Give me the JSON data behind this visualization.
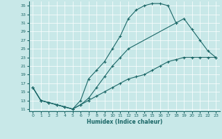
{
  "xlabel": "Humidex (Indice chaleur)",
  "bg_color": "#c8e8e8",
  "line_color": "#1a6666",
  "grid_color": "#ffffff",
  "xlim": [
    -0.5,
    23.5
  ],
  "ylim": [
    10.5,
    36
  ],
  "xticks": [
    0,
    1,
    2,
    3,
    4,
    5,
    6,
    7,
    8,
    9,
    10,
    11,
    12,
    13,
    14,
    15,
    16,
    17,
    18,
    19,
    20,
    21,
    22,
    23
  ],
  "yticks": [
    11,
    13,
    15,
    17,
    19,
    21,
    23,
    25,
    27,
    29,
    31,
    33,
    35
  ],
  "line1_x": [
    0,
    1,
    2,
    3,
    4,
    5,
    6,
    7,
    8,
    9,
    10,
    11,
    12,
    13,
    14,
    15,
    16,
    17,
    18
  ],
  "line1_y": [
    16,
    13,
    12.5,
    12,
    11.5,
    11,
    13,
    18,
    20,
    22,
    25,
    28,
    32,
    34,
    35,
    35.5,
    35.5,
    35,
    31
  ],
  "line2_x": [
    0,
    1,
    2,
    3,
    4,
    5,
    6,
    7,
    8,
    9,
    10,
    11,
    12,
    18,
    19,
    20,
    21,
    22,
    23
  ],
  "line2_y": [
    16,
    13,
    12.5,
    12,
    11.5,
    11,
    12,
    13.5,
    16,
    18.5,
    21,
    23,
    25,
    31,
    32,
    29.5,
    27,
    24.5,
    23
  ],
  "line3_x": [
    0,
    1,
    2,
    3,
    4,
    5,
    6,
    7,
    8,
    9,
    10,
    11,
    12,
    13,
    14,
    15,
    16,
    17,
    18,
    19,
    20,
    21,
    22,
    23
  ],
  "line3_y": [
    16,
    13,
    12.5,
    12,
    11.5,
    11,
    12,
    13,
    14,
    15,
    16,
    17,
    18,
    18.5,
    19,
    20,
    21,
    22,
    22.5,
    23,
    23,
    23,
    23,
    23
  ]
}
